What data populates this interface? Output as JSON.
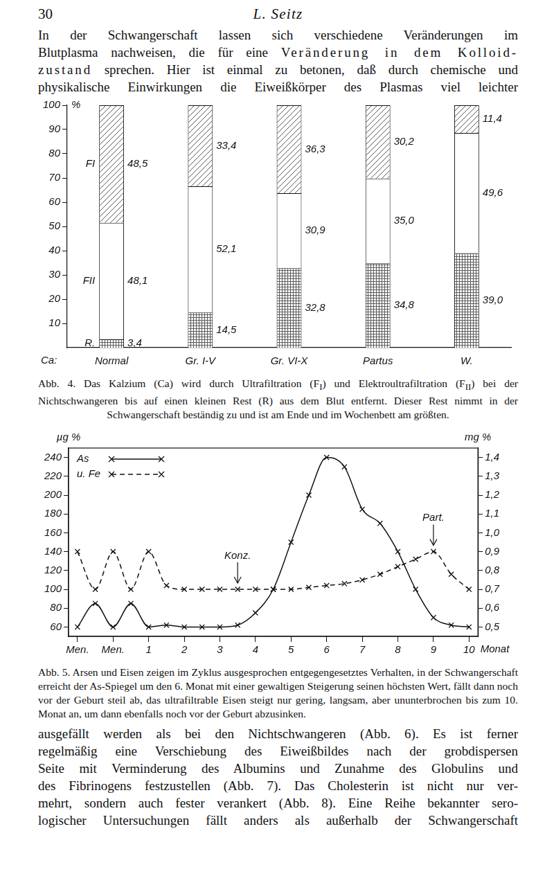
{
  "page": {
    "number": "30",
    "author": "L. Seitz"
  },
  "text_top": [
    [
      "In der Schwangerschaft lassen sich verschiedene Veränderungen im"
    ],
    [
      "Blutplasma nachweisen, die für eine ",
      {
        "em": "Veränderung in dem Kolloid-"
      }
    ],
    [
      {
        "em": "zustand"
      },
      " sprechen. Hier ist einmal zu betonen, daß durch chemische und"
    ],
    [
      "physikalische Einwirkungen die Eiweißkörper des Plasmas viel leichter"
    ]
  ],
  "chart_data": [
    {
      "type": "bar",
      "stacked": true,
      "categories": [
        "Normal",
        "Gr. I-V",
        "Gr. VI-X",
        "Partus",
        "W."
      ],
      "xlabel": "Ca:",
      "ylabel": "%",
      "ylim": [
        0,
        100
      ],
      "yticks": [
        10,
        20,
        30,
        40,
        50,
        60,
        70,
        80,
        90,
        100
      ],
      "grid": false,
      "data_labels": true,
      "series": [
        {
          "name": "R.",
          "color": "#5a5a5a",
          "values": [
            3.4,
            14.5,
            32.8,
            34.8,
            39.0
          ],
          "value_labels": [
            "3,4",
            "14,5",
            "32,8",
            "34,8",
            "39,0"
          ]
        },
        {
          "name": "FII",
          "color": "#ffffff",
          "values": [
            48.1,
            52.1,
            30.9,
            35.0,
            49.6
          ],
          "value_labels": [
            "48,1",
            "52,1",
            "30,9",
            "35,0",
            "49,6"
          ]
        },
        {
          "name": "FI",
          "color": "#5a5a5a",
          "values": [
            48.5,
            33.4,
            36.3,
            30.2,
            11.4
          ],
          "value_labels": [
            "48,5",
            "33,4",
            "36,3",
            "30,2",
            "11,4"
          ]
        }
      ]
    },
    {
      "type": "line",
      "categories": [
        "Men.",
        null,
        "Men.",
        null,
        "1",
        null,
        "2",
        null,
        "3",
        null,
        "4",
        null,
        "5",
        null,
        "6",
        null,
        "7",
        null,
        "8",
        null,
        "9",
        null,
        "10"
      ],
      "xlabel": "Monat",
      "ylabel": "µg %",
      "y2label": "mg %",
      "ylim": [
        50,
        250
      ],
      "yticks": [
        60,
        80,
        100,
        120,
        140,
        160,
        180,
        200,
        220,
        240
      ],
      "y2lim": [
        0.45,
        1.45
      ],
      "y2ticks": [
        {
          "value": 0.5,
          "label": "0,5"
        },
        {
          "value": 0.6,
          "label": "0,6"
        },
        {
          "value": 0.7,
          "label": "0,7"
        },
        {
          "value": 0.8,
          "label": "0,8"
        },
        {
          "value": 0.9,
          "label": "0,9"
        },
        {
          "value": 1.0,
          "label": "1,0"
        },
        {
          "value": 1.1,
          "label": "1,1"
        },
        {
          "value": 1.2,
          "label": "1,2"
        },
        {
          "value": 1.3,
          "label": "1,3"
        },
        {
          "value": 1.4,
          "label": "1,4"
        }
      ],
      "grid": false,
      "legend": "top-left",
      "series": [
        {
          "name": "As",
          "color": "#111111",
          "line_style": "solid",
          "marker": "x",
          "values": [
            60,
            85,
            60,
            85,
            60,
            62,
            60,
            60,
            60,
            62,
            75,
            100,
            150,
            200,
            240,
            230,
            185,
            170,
            140,
            100,
            70,
            62,
            60
          ]
        },
        {
          "name": "u. Fe",
          "color": "#111111",
          "line_style": "dashed",
          "marker": "x",
          "axis": "y2",
          "values": [
            0.9,
            0.7,
            0.9,
            0.7,
            0.9,
            0.72,
            0.7,
            0.7,
            0.7,
            0.7,
            0.7,
            0.7,
            0.7,
            0.71,
            0.72,
            0.73,
            0.75,
            0.78,
            0.82,
            0.86,
            0.9,
            0.78,
            0.7
          ]
        }
      ],
      "annotations": [
        {
          "text": "Konz.",
          "x": 9
        },
        {
          "text": "Part.",
          "x": 20
        }
      ]
    }
  ],
  "captions": [
    [
      "Abb. 4. Das Kalzium (Ca) wird durch Ultrafiltration (F",
      {
        "sub": "I"
      },
      ") und Elektroultrafiltration (F",
      {
        "sub": "II"
      },
      ") bei der Nichtschwangeren bis auf einen kleinen Rest (R) aus dem Blut entfernt. Dieser Rest nimmt in der Schwangerschaft beständig zu und ist am Ende und im Wochenbett am größten."
    ],
    [
      "Abb. 5. Arsen und Eisen zeigen im Zyklus ausgesprochen entgegengesetztes Verhalten, in der Schwangerschaft erreicht der As-Spiegel um den 6. Monat mit einer gewaltigen Steigerung seinen höchsten Wert, fällt dann noch vor der Geburt steil ab, das ultrafiltrable Eisen steigt nur gering, langsam, aber ununterbrochen bis zum 10. Monat an, um dann ebenfalls noch vor der Geburt abzusinken."
    ]
  ],
  "text_bottom": [
    [
      "ausgefällt werden als bei den Nichtschwangeren (Abb. 6). Es ist ferner"
    ],
    [
      "regelmäßig eine Verschiebung des Eiweißbildes nach der grobdispersen"
    ],
    [
      "Seite mit Verminderung des Albumins und Zunahme des Globulins und"
    ],
    [
      "des Fibrinogens festzustellen (Abb. 7). Das Cholesterin ist nicht nur ver-"
    ],
    [
      "mehrt, sondern auch fester verankert (Abb. 8). Eine Reihe bekannter sero-"
    ],
    [
      "logischer Untersuchungen fällt anders als außerhalb der Schwangerschaft"
    ]
  ]
}
